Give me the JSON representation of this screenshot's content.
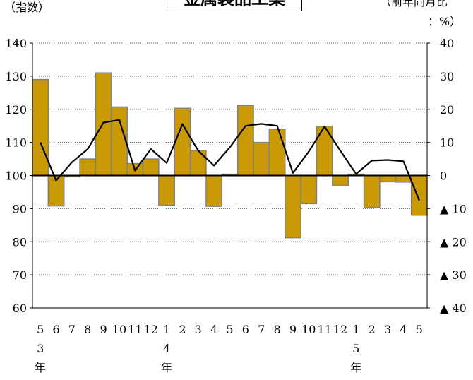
{
  "chart_data": {
    "type": "bar+line",
    "title": "金属製品工業",
    "left_axis_label": "（指数）",
    "right_axis_label_line1": "（前年同月比",
    "right_axis_label_line2": "：%）",
    "left_ylim": [
      60,
      140
    ],
    "left_ticks": [
      "60",
      "70",
      "80",
      "90",
      "100",
      "110",
      "120",
      "130",
      "140"
    ],
    "right_ylim": [
      -40,
      40
    ],
    "right_ticks": [
      "▲ 40",
      "▲ 30",
      "▲ 20",
      "▲ 10",
      "0",
      "10",
      "20",
      "30",
      "40"
    ],
    "grid": true,
    "categories": [
      "5",
      "6",
      "7",
      "8",
      "9",
      "10",
      "11",
      "12",
      "1",
      "2",
      "3",
      "4",
      "5",
      "6",
      "7",
      "8",
      "9",
      "10",
      "11",
      "12",
      "1",
      "2",
      "3",
      "4",
      "5"
    ],
    "year_marks": [
      {
        "index": 0,
        "num": "3",
        "unit": "年"
      },
      {
        "index": 8,
        "num": "4",
        "unit": "年"
      },
      {
        "index": 20,
        "num": "5",
        "unit": "年"
      }
    ],
    "bar_base": 100,
    "series": [
      {
        "type": "bar",
        "axis": "left",
        "values": [
          129.0,
          90.8,
          99.6,
          105.0,
          131.0,
          120.7,
          103.6,
          105.0,
          91.0,
          120.3,
          107.6,
          90.7,
          100.4,
          121.2,
          110.0,
          114.0,
          81.2,
          91.5,
          114.9,
          96.9,
          100.4,
          90.3,
          98.1,
          98.0,
          88.0
        ]
      },
      {
        "type": "line",
        "axis": "right",
        "values": [
          10.0,
          -1.5,
          4.0,
          8.0,
          16.0,
          16.8,
          1.5,
          8.0,
          3.8,
          15.5,
          7.5,
          3.0,
          8.5,
          15.0,
          15.6,
          15.0,
          0.8,
          7.2,
          14.8,
          7.5,
          0.5,
          4.5,
          4.7,
          4.3,
          -7.5
        ]
      }
    ],
    "colors": {
      "bar_fill": "#C99A06",
      "bar_stroke": "#7f7f7f",
      "line": "#000000",
      "grid": "#555555"
    }
  }
}
